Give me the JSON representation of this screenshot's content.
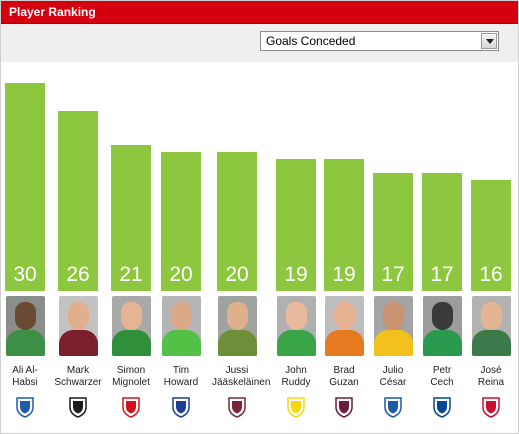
{
  "header": {
    "title": "Player Ranking"
  },
  "toolbar": {
    "metric": "Goals Conceded"
  },
  "chart_data": {
    "type": "bar",
    "title": "",
    "xlabel": "",
    "ylabel": "",
    "categories": [
      "Ali Al-Habsi",
      "Mark Schwarzer",
      "Simon Mignolet",
      "Tim Howard",
      "Jussi Jääskeläinen",
      "John Ruddy",
      "Brad Guzan",
      "Julio César",
      "Petr Cech",
      "José Reina"
    ],
    "values": [
      30,
      26,
      21,
      20,
      20,
      19,
      19,
      17,
      17,
      16
    ],
    "ylim": [
      0,
      30
    ],
    "bar_color": "#8dc63f",
    "grid": false
  },
  "players": [
    {
      "name_line1": "Ali Al-",
      "name_line2": "Habsi",
      "club_badge": "wigan-badge-icon",
      "photo_bg": "#8a8e8a",
      "skin": "#6b4a33",
      "kit": "#3d8f45"
    },
    {
      "name_line1": "Mark",
      "name_line2": "Schwarzer",
      "club_badge": "fulham-badge-icon",
      "photo_bg": "#c2c2c2",
      "skin": "#e0b08e",
      "kit": "#7a1f2b"
    },
    {
      "name_line1": "Simon",
      "name_line2": "Mignolet",
      "club_badge": "sunderland-badge-icon",
      "photo_bg": "#a9a9a9",
      "skin": "#e3b594",
      "kit": "#2f8f3a"
    },
    {
      "name_line1": "Tim",
      "name_line2": "Howard",
      "club_badge": "everton-badge-icon",
      "photo_bg": "#b5b5b5",
      "skin": "#d9a98a",
      "kit": "#55c048"
    },
    {
      "name_line1": "Jussi",
      "name_line2": "Jääskeläinen",
      "club_badge": "westham-badge-icon",
      "photo_bg": "#9fa3a0",
      "skin": "#deb08c",
      "kit": "#6d8f3a"
    },
    {
      "name_line1": "John",
      "name_line2": "Ruddy",
      "club_badge": "norwich-badge-icon",
      "photo_bg": "#b0b0b0",
      "skin": "#e8b99c",
      "kit": "#3aa547"
    },
    {
      "name_line1": "Brad",
      "name_line2": "Guzan",
      "club_badge": "astonvilla-badge-icon",
      "photo_bg": "#bdbdbd",
      "skin": "#e6b392",
      "kit": "#e67a1e"
    },
    {
      "name_line1": "Julio",
      "name_line2": "César",
      "club_badge": "qpr-badge-icon",
      "photo_bg": "#a4a4a4",
      "skin": "#c99372",
      "kit": "#f0c21b"
    },
    {
      "name_line1": "Petr",
      "name_line2": "Cech",
      "club_badge": "chelsea-badge-icon",
      "photo_bg": "#9c9c9c",
      "skin": "#3a3a3a",
      "kit": "#2a9a4f"
    },
    {
      "name_line1": "José",
      "name_line2": "Reina",
      "club_badge": "liverpool-badge-icon",
      "photo_bg": "#b2b2b2",
      "skin": "#e2b491",
      "kit": "#3c7a4a"
    }
  ],
  "badge_colors": {
    "wigan": "#1f5ca8",
    "fulham": "#1a1a1a",
    "sunderland": "#d4141c",
    "everton": "#1c3f95",
    "westham": "#7a263a",
    "norwich": "#f5d90a",
    "astonvilla": "#6b1b3b",
    "qpr": "#1d5ba4",
    "chelsea": "#034694",
    "liverpool": "#c8102e"
  }
}
